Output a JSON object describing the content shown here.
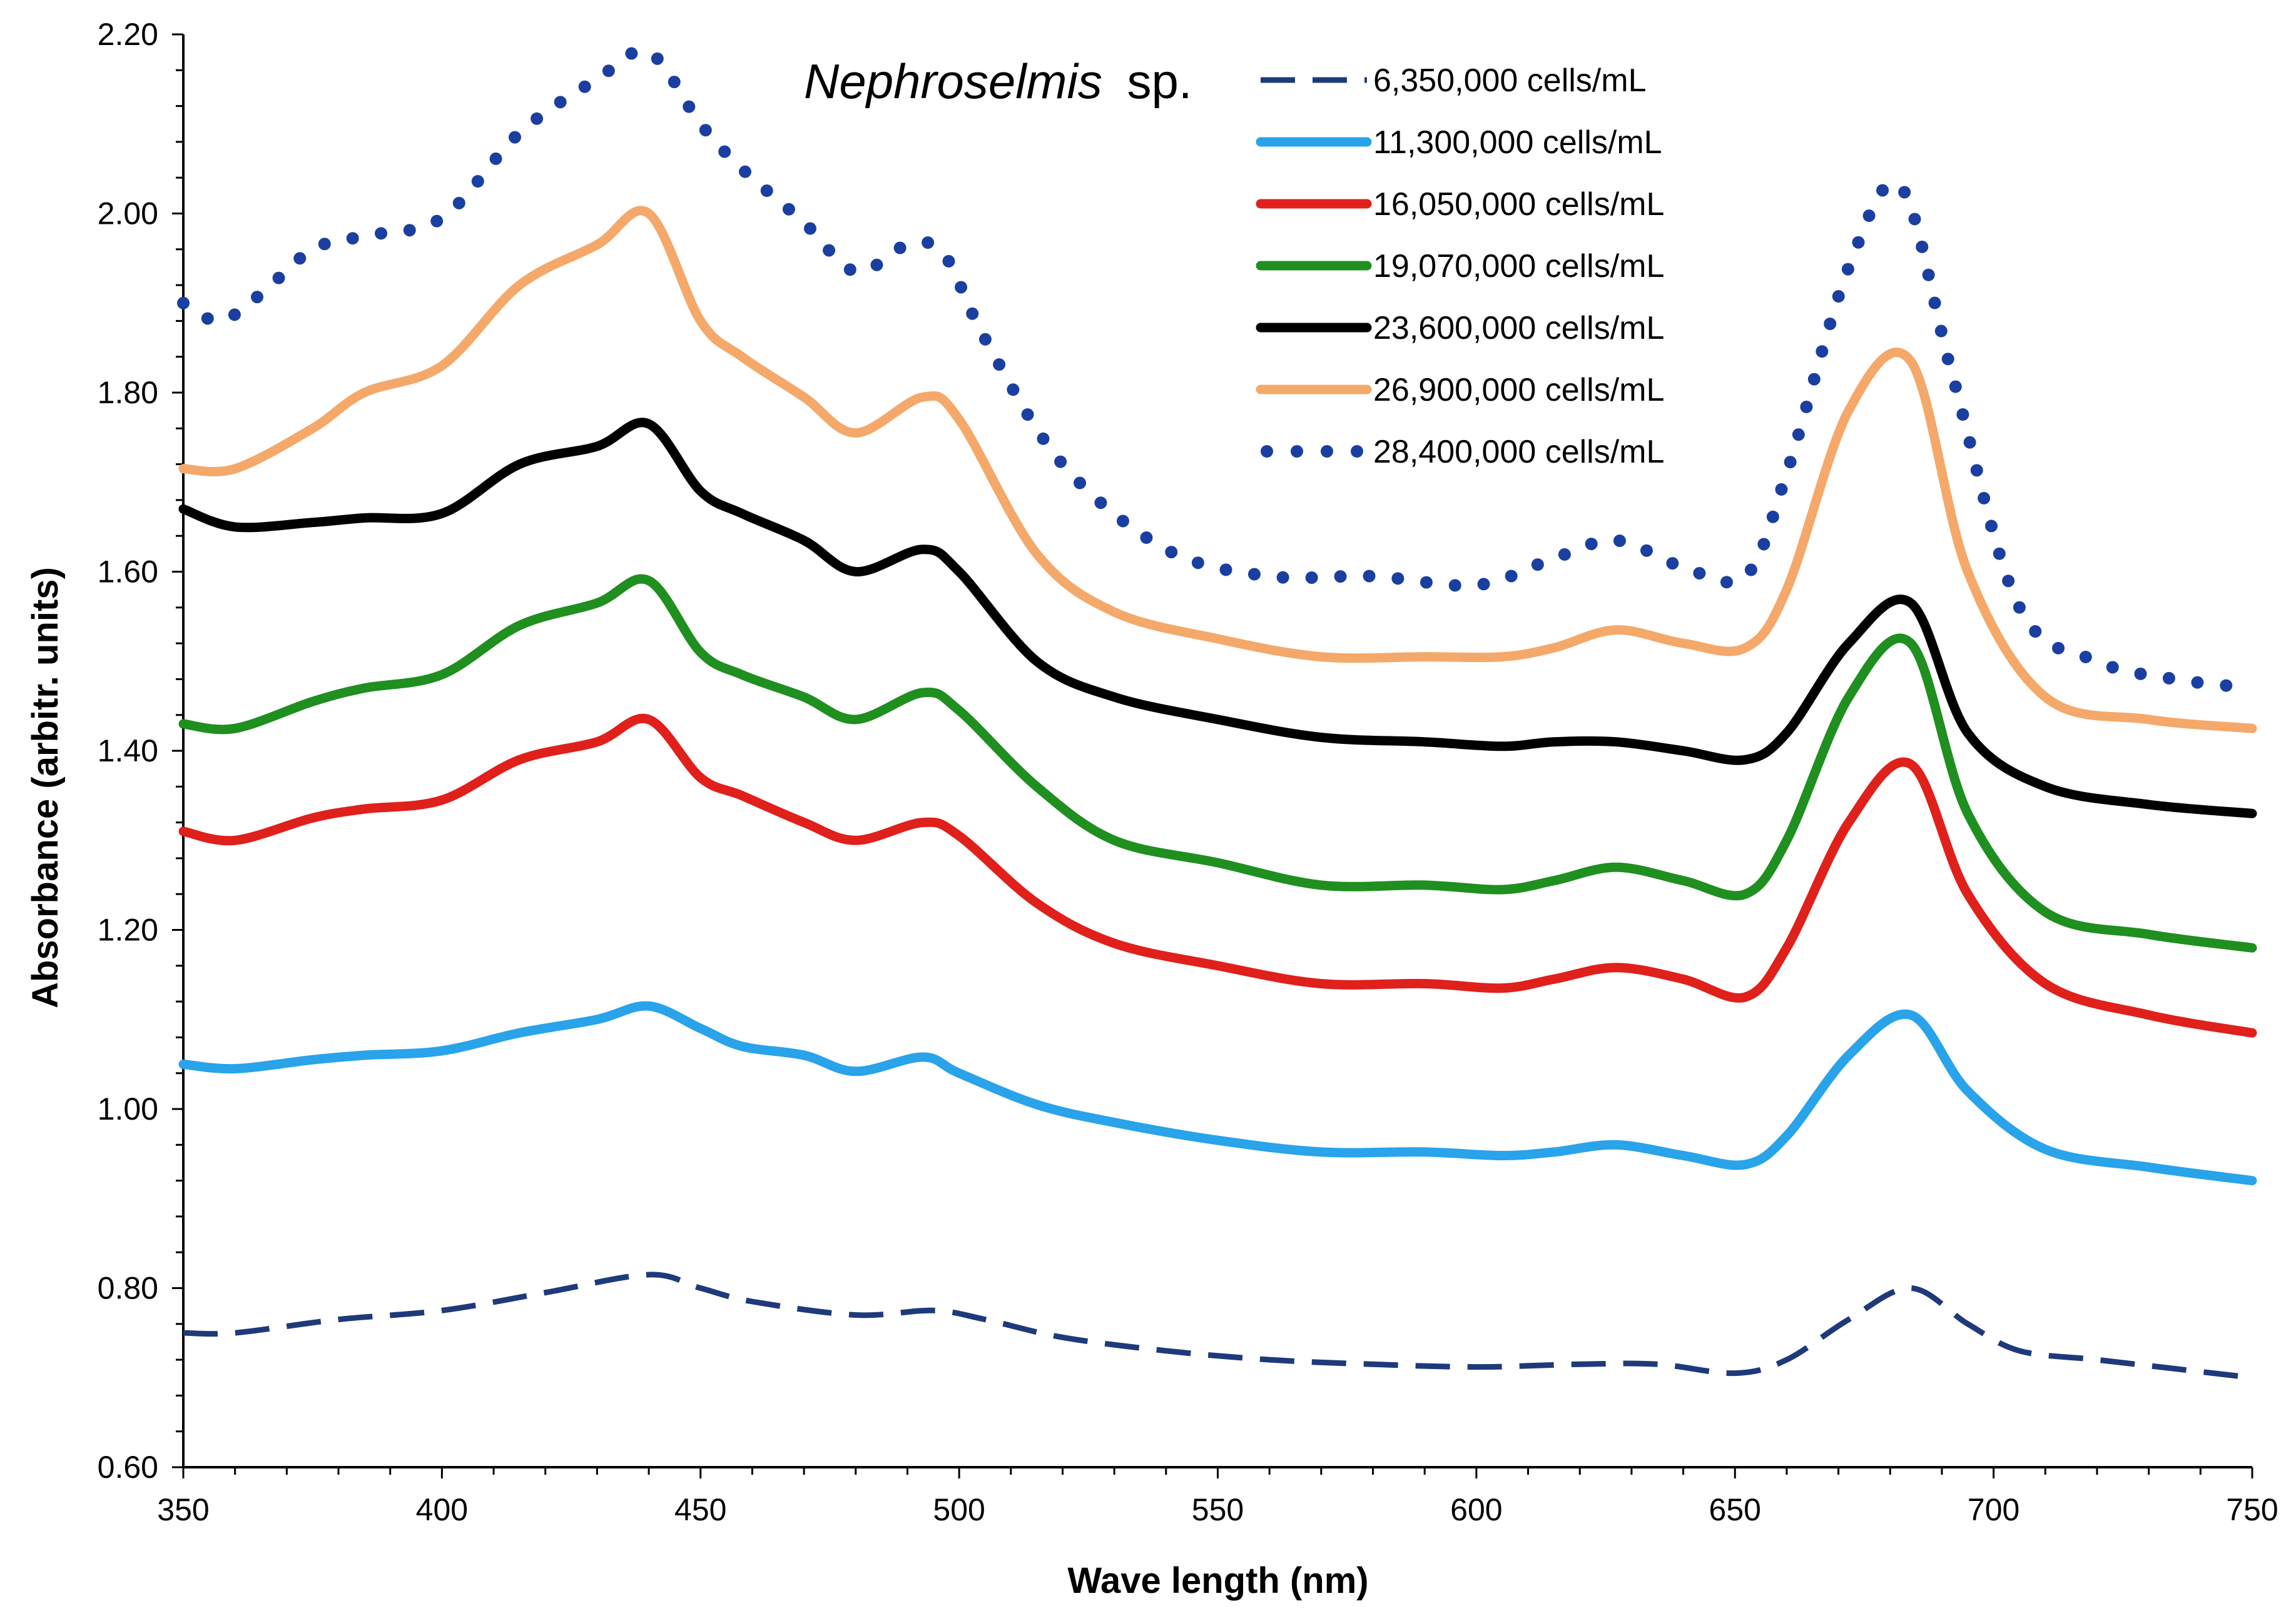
{
  "chart_data": {
    "type": "line",
    "title_species": "Nephroselmis",
    "title_suffix": "sp.",
    "xlabel": "Wave length (nm)",
    "ylabel": "Absorbance (arbitr. units)",
    "xlim": [
      350,
      750
    ],
    "ylim": [
      0.6,
      2.2
    ],
    "x_ticks": [
      350,
      400,
      450,
      500,
      550,
      600,
      650,
      700,
      750
    ],
    "x_tick_labels": [
      "350",
      "400",
      "450",
      "500",
      "550",
      "600",
      "650",
      "700",
      "750"
    ],
    "y_ticks": [
      0.6,
      0.8,
      1.0,
      1.2,
      1.4,
      1.6,
      1.8,
      2.0,
      2.2
    ],
    "y_tick_labels": [
      "0.60",
      "0.80",
      "1.00",
      "1.20",
      "1.40",
      "1.60",
      "1.80",
      "2.00",
      "2.20"
    ],
    "legend_position": "top-right",
    "series": [
      {
        "name": "6,350,000 cells/mL",
        "color": "#1f3a7a",
        "style": "dashed",
        "points": [
          [
            350,
            0.75
          ],
          [
            360,
            0.75
          ],
          [
            380,
            0.765
          ],
          [
            400,
            0.775
          ],
          [
            420,
            0.795
          ],
          [
            440,
            0.815
          ],
          [
            450,
            0.8
          ],
          [
            460,
            0.785
          ],
          [
            480,
            0.77
          ],
          [
            495,
            0.775
          ],
          [
            505,
            0.765
          ],
          [
            520,
            0.745
          ],
          [
            540,
            0.73
          ],
          [
            560,
            0.72
          ],
          [
            580,
            0.715
          ],
          [
            600,
            0.712
          ],
          [
            620,
            0.715
          ],
          [
            635,
            0.715
          ],
          [
            650,
            0.705
          ],
          [
            660,
            0.72
          ],
          [
            672,
            0.765
          ],
          [
            684,
            0.8
          ],
          [
            695,
            0.76
          ],
          [
            705,
            0.73
          ],
          [
            720,
            0.72
          ],
          [
            735,
            0.71
          ],
          [
            750,
            0.7
          ]
        ]
      },
      {
        "name": "11,300,000 cells/mL",
        "color": "#29a3ea",
        "style": "solid",
        "points": [
          [
            350,
            1.05
          ],
          [
            360,
            1.045
          ],
          [
            375,
            1.055
          ],
          [
            385,
            1.06
          ],
          [
            400,
            1.065
          ],
          [
            415,
            1.085
          ],
          [
            430,
            1.1
          ],
          [
            440,
            1.115
          ],
          [
            450,
            1.09
          ],
          [
            458,
            1.07
          ],
          [
            470,
            1.06
          ],
          [
            480,
            1.042
          ],
          [
            493,
            1.058
          ],
          [
            500,
            1.04
          ],
          [
            515,
            1.005
          ],
          [
            530,
            0.985
          ],
          [
            550,
            0.965
          ],
          [
            570,
            0.952
          ],
          [
            590,
            0.952
          ],
          [
            605,
            0.948
          ],
          [
            615,
            0.952
          ],
          [
            627,
            0.96
          ],
          [
            640,
            0.948
          ],
          [
            652,
            0.938
          ],
          [
            660,
            0.97
          ],
          [
            672,
            1.06
          ],
          [
            684,
            1.105
          ],
          [
            695,
            1.02
          ],
          [
            710,
            0.955
          ],
          [
            730,
            0.935
          ],
          [
            750,
            0.92
          ]
        ]
      },
      {
        "name": "16,050,000 cells/mL",
        "color": "#e0201b",
        "style": "solid",
        "points": [
          [
            350,
            1.31
          ],
          [
            360,
            1.3
          ],
          [
            375,
            1.325
          ],
          [
            385,
            1.335
          ],
          [
            400,
            1.345
          ],
          [
            415,
            1.39
          ],
          [
            430,
            1.41
          ],
          [
            440,
            1.435
          ],
          [
            450,
            1.37
          ],
          [
            458,
            1.35
          ],
          [
            470,
            1.32
          ],
          [
            480,
            1.3
          ],
          [
            493,
            1.32
          ],
          [
            500,
            1.305
          ],
          [
            515,
            1.23
          ],
          [
            530,
            1.185
          ],
          [
            550,
            1.16
          ],
          [
            570,
            1.14
          ],
          [
            590,
            1.14
          ],
          [
            605,
            1.135
          ],
          [
            615,
            1.145
          ],
          [
            627,
            1.158
          ],
          [
            640,
            1.145
          ],
          [
            652,
            1.125
          ],
          [
            660,
            1.18
          ],
          [
            672,
            1.32
          ],
          [
            684,
            1.385
          ],
          [
            695,
            1.24
          ],
          [
            710,
            1.14
          ],
          [
            730,
            1.105
          ],
          [
            750,
            1.085
          ]
        ]
      },
      {
        "name": "19,070,000 cells/mL",
        "color": "#1f8f1f",
        "style": "solid",
        "points": [
          [
            350,
            1.43
          ],
          [
            360,
            1.425
          ],
          [
            375,
            1.455
          ],
          [
            385,
            1.47
          ],
          [
            400,
            1.485
          ],
          [
            415,
            1.54
          ],
          [
            430,
            1.565
          ],
          [
            440,
            1.59
          ],
          [
            450,
            1.51
          ],
          [
            458,
            1.485
          ],
          [
            470,
            1.46
          ],
          [
            480,
            1.435
          ],
          [
            493,
            1.465
          ],
          [
            500,
            1.445
          ],
          [
            515,
            1.36
          ],
          [
            530,
            1.3
          ],
          [
            550,
            1.275
          ],
          [
            570,
            1.25
          ],
          [
            590,
            1.25
          ],
          [
            605,
            1.245
          ],
          [
            615,
            1.255
          ],
          [
            627,
            1.27
          ],
          [
            640,
            1.255
          ],
          [
            652,
            1.24
          ],
          [
            660,
            1.3
          ],
          [
            672,
            1.46
          ],
          [
            684,
            1.52
          ],
          [
            695,
            1.33
          ],
          [
            710,
            1.22
          ],
          [
            730,
            1.195
          ],
          [
            750,
            1.18
          ]
        ]
      },
      {
        "name": "23,600,000 cells/mL",
        "color": "#000000",
        "style": "solid",
        "points": [
          [
            350,
            1.67
          ],
          [
            360,
            1.65
          ],
          [
            375,
            1.655
          ],
          [
            385,
            1.66
          ],
          [
            400,
            1.665
          ],
          [
            415,
            1.72
          ],
          [
            430,
            1.74
          ],
          [
            440,
            1.765
          ],
          [
            450,
            1.69
          ],
          [
            458,
            1.665
          ],
          [
            470,
            1.635
          ],
          [
            480,
            1.6
          ],
          [
            493,
            1.625
          ],
          [
            500,
            1.6
          ],
          [
            515,
            1.5
          ],
          [
            530,
            1.46
          ],
          [
            550,
            1.435
          ],
          [
            570,
            1.415
          ],
          [
            590,
            1.41
          ],
          [
            605,
            1.405
          ],
          [
            615,
            1.41
          ],
          [
            627,
            1.41
          ],
          [
            640,
            1.4
          ],
          [
            652,
            1.39
          ],
          [
            660,
            1.42
          ],
          [
            672,
            1.52
          ],
          [
            684,
            1.565
          ],
          [
            695,
            1.42
          ],
          [
            710,
            1.36
          ],
          [
            730,
            1.34
          ],
          [
            750,
            1.33
          ]
        ]
      },
      {
        "name": "26,900,000 cells/mL",
        "color": "#f4a96a",
        "style": "solid",
        "points": [
          [
            350,
            1.715
          ],
          [
            360,
            1.715
          ],
          [
            375,
            1.76
          ],
          [
            385,
            1.8
          ],
          [
            400,
            1.83
          ],
          [
            415,
            1.92
          ],
          [
            430,
            1.965
          ],
          [
            440,
            2.0
          ],
          [
            450,
            1.88
          ],
          [
            458,
            1.84
          ],
          [
            470,
            1.795
          ],
          [
            480,
            1.755
          ],
          [
            493,
            1.795
          ],
          [
            500,
            1.77
          ],
          [
            515,
            1.62
          ],
          [
            530,
            1.555
          ],
          [
            550,
            1.525
          ],
          [
            570,
            1.505
          ],
          [
            590,
            1.505
          ],
          [
            605,
            1.505
          ],
          [
            615,
            1.515
          ],
          [
            627,
            1.535
          ],
          [
            640,
            1.52
          ],
          [
            652,
            1.515
          ],
          [
            660,
            1.58
          ],
          [
            672,
            1.78
          ],
          [
            684,
            1.835
          ],
          [
            695,
            1.6
          ],
          [
            710,
            1.46
          ],
          [
            730,
            1.435
          ],
          [
            750,
            1.425
          ]
        ]
      },
      {
        "name": "28,400,000 cells/mL",
        "color": "#1a3fa0",
        "style": "dotted",
        "points": [
          [
            350,
            1.9
          ],
          [
            357,
            1.88
          ],
          [
            365,
            1.91
          ],
          [
            375,
            1.96
          ],
          [
            385,
            1.975
          ],
          [
            400,
            1.995
          ],
          [
            415,
            2.09
          ],
          [
            430,
            2.15
          ],
          [
            440,
            2.18
          ],
          [
            450,
            2.1
          ],
          [
            458,
            2.05
          ],
          [
            470,
            1.99
          ],
          [
            480,
            1.935
          ],
          [
            490,
            1.965
          ],
          [
            497,
            1.955
          ],
          [
            505,
            1.86
          ],
          [
            520,
            1.72
          ],
          [
            540,
            1.625
          ],
          [
            560,
            1.595
          ],
          [
            580,
            1.595
          ],
          [
            600,
            1.585
          ],
          [
            615,
            1.615
          ],
          [
            627,
            1.635
          ],
          [
            640,
            1.605
          ],
          [
            652,
            1.595
          ],
          [
            660,
            1.71
          ],
          [
            672,
            1.94
          ],
          [
            682,
            2.03
          ],
          [
            692,
            1.82
          ],
          [
            705,
            1.56
          ],
          [
            720,
            1.5
          ],
          [
            735,
            1.48
          ],
          [
            750,
            1.47
          ]
        ]
      }
    ]
  }
}
